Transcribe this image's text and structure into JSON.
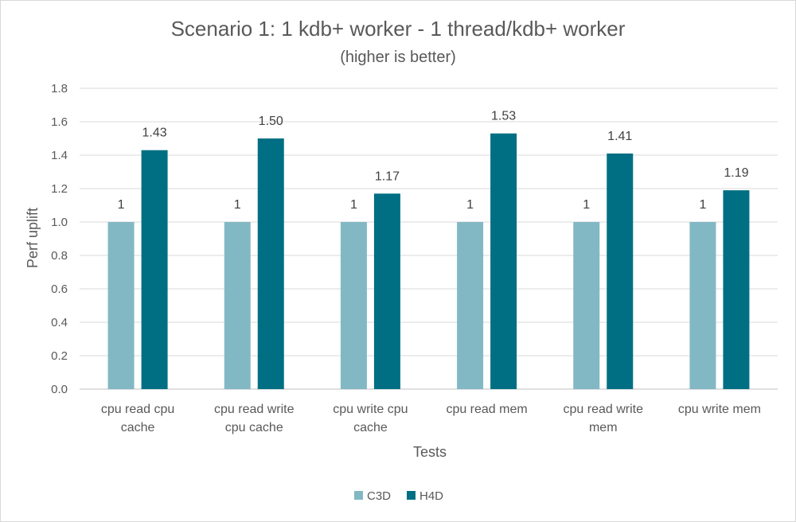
{
  "chart_data": {
    "type": "bar",
    "title": "Scenario 1: 1 kdb+ worker - 1 thread/kdb+ worker",
    "subtitle": "(higher is better)",
    "xlabel": "Tests",
    "ylabel": "Perf uplift",
    "ylim": [
      0,
      1.8
    ],
    "yticks": [
      "0.0",
      "0.2",
      "0.4",
      "0.6",
      "0.8",
      "1.0",
      "1.2",
      "1.4",
      "1.6",
      "1.8"
    ],
    "categories": [
      [
        "cpu read cpu",
        "cache"
      ],
      [
        "cpu read write",
        "cpu cache"
      ],
      [
        "cpu write cpu",
        "cache"
      ],
      [
        "cpu read mem"
      ],
      [
        "cpu read write",
        "mem"
      ],
      [
        "cpu write mem"
      ]
    ],
    "series": [
      {
        "name": "C3D",
        "color": "#82b8c4",
        "values": [
          1,
          1,
          1,
          1,
          1,
          1
        ],
        "labels": [
          "1",
          "1",
          "1",
          "1",
          "1",
          "1"
        ]
      },
      {
        "name": "H4D",
        "color": "#006f83",
        "values": [
          1.43,
          1.5,
          1.17,
          1.53,
          1.41,
          1.19
        ],
        "labels": [
          "1.43",
          "1.50",
          "1.17",
          "1.53",
          "1.41",
          "1.19"
        ]
      }
    ],
    "grid": true,
    "legend": "bottom"
  }
}
